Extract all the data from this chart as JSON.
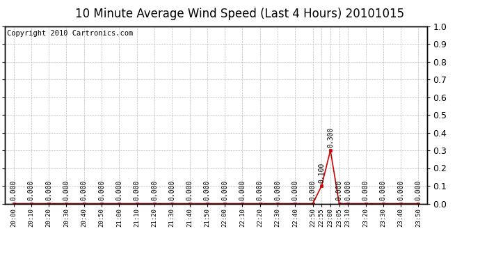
{
  "title": "10 Minute Average Wind Speed (Last 4 Hours) 20101015",
  "copyright_text": "Copyright 2010 Cartronics.com",
  "x_labels": [
    "20:00",
    "20:10",
    "20:20",
    "20:30",
    "20:40",
    "20:50",
    "21:00",
    "21:10",
    "21:20",
    "21:30",
    "21:40",
    "21:50",
    "22:00",
    "22:10",
    "22:20",
    "22:30",
    "22:40",
    "22:50",
    "22:55",
    "23:00",
    "23:05",
    "23:10",
    "23:20",
    "23:30",
    "23:40",
    "23:50"
  ],
  "x_indices": [
    0,
    1,
    2,
    3,
    4,
    5,
    6,
    7,
    8,
    9,
    10,
    11,
    12,
    13,
    14,
    15,
    16,
    17,
    17.5,
    18,
    18.5,
    19,
    20,
    21,
    22,
    23
  ],
  "y_values": [
    0.0,
    0.0,
    0.0,
    0.0,
    0.0,
    0.0,
    0.0,
    0.0,
    0.0,
    0.0,
    0.0,
    0.0,
    0.0,
    0.0,
    0.0,
    0.0,
    0.0,
    0.0,
    0.1,
    0.3,
    0.0,
    0.0,
    0.0,
    0.0,
    0.0,
    0.0
  ],
  "ylim": [
    0.0,
    1.0
  ],
  "y_ticks": [
    0.0,
    0.1,
    0.2,
    0.3,
    0.4,
    0.5,
    0.6,
    0.7,
    0.8,
    0.9,
    1.0
  ],
  "line_color": "#cc0000",
  "marker_color": "#cc0000",
  "bg_color": "#ffffff",
  "plot_bg_color": "#ffffff",
  "grid_color": "#bbbbbb",
  "title_fontsize": 12,
  "copyright_fontsize": 7.5,
  "annotation_fontsize": 7
}
